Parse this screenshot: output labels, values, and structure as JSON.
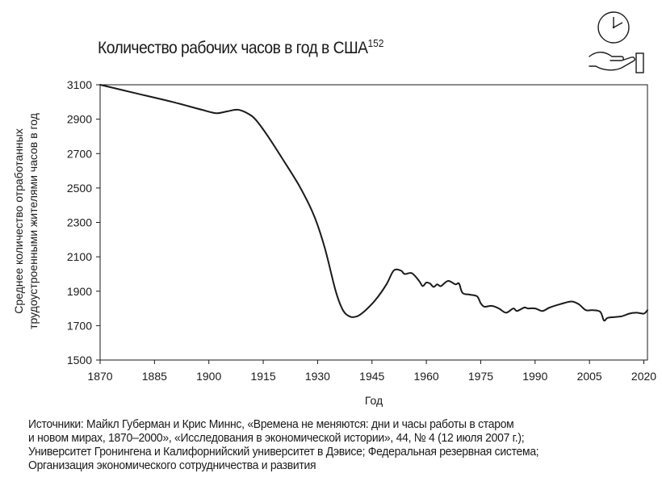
{
  "title": "Количество рабочих часов в год в США",
  "title_ref": "152",
  "source_lines": [
    "Источники: Майкл Губерман и Крис Миннс, «Времена не меняются: дни и часы работы в старом",
    "и новом мирах, 1870–2000», «Исследования в экономической истории», 44, № 4 (12 июля 2007 г.);",
    "Университет Гронингена и Калифорнийский университет в Дэвисе; Федеральная резервная система;",
    "Организация экономического сотрудничества и развития"
  ],
  "logo_icon": "clock-on-hand-icon",
  "chart_data": {
    "type": "line",
    "title": "Количество рабочих часов в год в США",
    "xlabel": "Год",
    "ylabel_lines": [
      "Среднее количество отработанных",
      "трудоустроенными жителями часов в год"
    ],
    "xlim": [
      1870,
      2021
    ],
    "ylim": [
      1500,
      3100
    ],
    "x_ticks": [
      1870,
      1885,
      1900,
      1915,
      1930,
      1945,
      1960,
      1975,
      1990,
      2005,
      2020
    ],
    "y_ticks": [
      1500,
      1700,
      1900,
      2100,
      2300,
      2500,
      2700,
      2900,
      3100
    ],
    "grid": false,
    "color": "#1a1a1a",
    "series": [
      {
        "points": [
          [
            1870,
            3100
          ],
          [
            1880,
            3050
          ],
          [
            1890,
            3000
          ],
          [
            1898,
            2955
          ],
          [
            1902,
            2935
          ],
          [
            1905,
            2945
          ],
          [
            1908,
            2955
          ],
          [
            1911,
            2930
          ],
          [
            1913,
            2895
          ],
          [
            1916,
            2810
          ],
          [
            1920,
            2680
          ],
          [
            1925,
            2510
          ],
          [
            1929,
            2340
          ],
          [
            1932,
            2150
          ],
          [
            1935,
            1900
          ],
          [
            1937,
            1790
          ],
          [
            1939,
            1752
          ],
          [
            1941,
            1755
          ],
          [
            1943,
            1785
          ],
          [
            1946,
            1850
          ],
          [
            1949,
            1940
          ],
          [
            1951,
            2020
          ],
          [
            1953,
            2020
          ],
          [
            1954,
            2000
          ],
          [
            1956,
            2005
          ],
          [
            1958,
            1960
          ],
          [
            1959,
            1930
          ],
          [
            1960,
            1950
          ],
          [
            1961,
            1945
          ],
          [
            1962,
            1925
          ],
          [
            1963,
            1940
          ],
          [
            1964,
            1930
          ],
          [
            1966,
            1960
          ],
          [
            1968,
            1940
          ],
          [
            1969,
            1945
          ],
          [
            1970,
            1890
          ],
          [
            1972,
            1880
          ],
          [
            1974,
            1870
          ],
          [
            1975,
            1830
          ],
          [
            1976,
            1810
          ],
          [
            1978,
            1815
          ],
          [
            1980,
            1800
          ],
          [
            1982,
            1775
          ],
          [
            1984,
            1800
          ],
          [
            1985,
            1785
          ],
          [
            1987,
            1805
          ],
          [
            1988,
            1800
          ],
          [
            1990,
            1800
          ],
          [
            1992,
            1785
          ],
          [
            1994,
            1805
          ],
          [
            1997,
            1825
          ],
          [
            2000,
            1840
          ],
          [
            2002,
            1825
          ],
          [
            2004,
            1790
          ],
          [
            2006,
            1790
          ],
          [
            2008,
            1780
          ],
          [
            2009,
            1730
          ],
          [
            2010,
            1745
          ],
          [
            2012,
            1750
          ],
          [
            2014,
            1755
          ],
          [
            2016,
            1770
          ],
          [
            2018,
            1775
          ],
          [
            2020,
            1770
          ],
          [
            2021,
            1790
          ]
        ]
      }
    ]
  }
}
